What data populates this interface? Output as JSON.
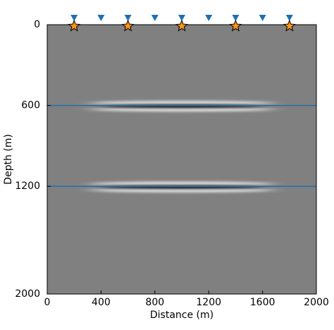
{
  "chart_data": {
    "type": "seismic",
    "xlabel": "Distance (m)",
    "ylabel": "Depth (m)",
    "xlim": [
      0,
      2000
    ],
    "ylim": [
      2000,
      0
    ],
    "xticks": [
      0,
      400,
      800,
      1200,
      1600,
      2000
    ],
    "yticks": [
      0,
      600,
      1200,
      2000
    ],
    "receivers": {
      "color": "#1f6fb0",
      "x": [
        200,
        400,
        600,
        800,
        1000,
        1200,
        1400,
        1600,
        1800
      ],
      "y": [
        0,
        0,
        0,
        0,
        0,
        0,
        0,
        0,
        0
      ]
    },
    "sources": {
      "color": "#f7941d",
      "x": [
        200,
        600,
        1000,
        1400,
        1800
      ],
      "y": [
        0,
        0,
        0,
        0,
        0
      ]
    },
    "reflectors": {
      "color": "#1f6fb0",
      "depths": [
        600,
        1200
      ]
    },
    "background": "#808080"
  }
}
